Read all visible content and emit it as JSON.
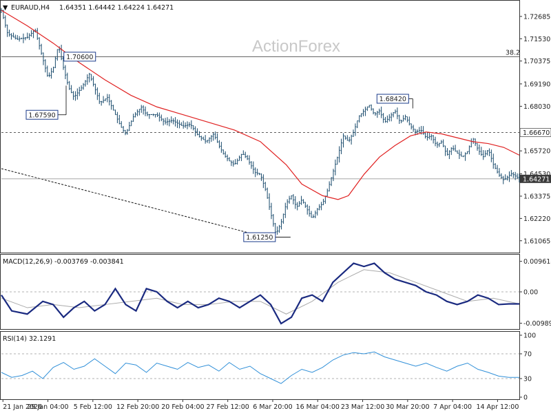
{
  "header": {
    "symbol": "EURAUD,H4",
    "ohlc": "1.64351 1.64442 1.64224 1.64271"
  },
  "watermark": "ActionForex",
  "chart_data": [
    {
      "type": "candlestick",
      "ylim": [
        1.6045,
        1.735
      ],
      "y_ticks": [
        "1.72685",
        "1.71530",
        "1.70375",
        "1.69190",
        "1.68030",
        "1.66670",
        "1.65720",
        "1.64530",
        "1.64271",
        "1.63375",
        "1.62220",
        "1.61065"
      ],
      "x_ticks": [
        "21 Jan 2026",
        "29 Jan 04:00",
        "5 Feb 12:00",
        "12 Feb 20:00",
        "20 Feb 04:00",
        "27 Feb 12:00",
        "6 Mar 20:00",
        "16 Mar 04:00",
        "23 Mar 12:00",
        "30 Mar 20:00",
        "7 Apr 04:00",
        "14 Apr 12:00"
      ],
      "last_price": "1.64271",
      "levels": [
        {
          "label": "1.70600",
          "value": 1.706
        },
        {
          "label": "1.67590",
          "value": 1.6759
        },
        {
          "label": "1.61250",
          "value": 1.6125
        },
        {
          "label": "1.68420",
          "value": 1.6842
        }
      ],
      "hlines": [
        {
          "value": 1.706,
          "label": "38.2",
          "style": "solid"
        },
        {
          "value": 1.6667,
          "label": "1.66670",
          "style": "dashed"
        }
      ],
      "trendline": {
        "from": [
          0,
          1.648
        ],
        "to": [
          0.51,
          1.6125
        ]
      },
      "price_path": [
        [
          0,
          1.73
        ],
        [
          0.012,
          1.718
        ],
        [
          0.03,
          1.715
        ],
        [
          0.05,
          1.716
        ],
        [
          0.065,
          1.72
        ],
        [
          0.08,
          1.705
        ],
        [
          0.09,
          1.695
        ],
        [
          0.1,
          1.7
        ],
        [
          0.11,
          1.712
        ],
        [
          0.12,
          1.7
        ],
        [
          0.13,
          1.69
        ],
        [
          0.14,
          1.685
        ],
        [
          0.155,
          1.69
        ],
        [
          0.17,
          1.697
        ],
        [
          0.18,
          1.69
        ],
        [
          0.19,
          1.682
        ],
        [
          0.205,
          1.685
        ],
        [
          0.22,
          1.676
        ],
        [
          0.23,
          1.67
        ],
        [
          0.24,
          1.666
        ],
        [
          0.255,
          1.675
        ],
        [
          0.27,
          1.68
        ],
        [
          0.28,
          1.676
        ],
        [
          0.3,
          1.676
        ],
        [
          0.315,
          1.672
        ],
        [
          0.33,
          1.673
        ],
        [
          0.35,
          1.67
        ],
        [
          0.365,
          1.671
        ],
        [
          0.38,
          1.665
        ],
        [
          0.395,
          1.662
        ],
        [
          0.41,
          1.666
        ],
        [
          0.42,
          1.66
        ],
        [
          0.43,
          1.655
        ],
        [
          0.44,
          1.652
        ],
        [
          0.45,
          1.65
        ],
        [
          0.465,
          1.656
        ],
        [
          0.475,
          1.653
        ],
        [
          0.49,
          1.646
        ],
        [
          0.5,
          1.645
        ],
        [
          0.51,
          1.637
        ],
        [
          0.52,
          1.625
        ],
        [
          0.53,
          1.614
        ],
        [
          0.54,
          1.62
        ],
        [
          0.55,
          1.63
        ],
        [
          0.56,
          1.634
        ],
        [
          0.57,
          1.628
        ],
        [
          0.58,
          1.632
        ],
        [
          0.59,
          1.627
        ],
        [
          0.6,
          1.622
        ],
        [
          0.61,
          1.627
        ],
        [
          0.62,
          1.63
        ],
        [
          0.63,
          1.637
        ],
        [
          0.64,
          1.646
        ],
        [
          0.65,
          1.655
        ],
        [
          0.66,
          1.665
        ],
        [
          0.67,
          1.662
        ],
        [
          0.68,
          1.667
        ],
        [
          0.69,
          1.675
        ],
        [
          0.7,
          1.678
        ],
        [
          0.71,
          1.681
        ],
        [
          0.72,
          1.676
        ],
        [
          0.73,
          1.678
        ],
        [
          0.74,
          1.672
        ],
        [
          0.75,
          1.675
        ],
        [
          0.76,
          1.678
        ],
        [
          0.77,
          1.672
        ],
        [
          0.78,
          1.675
        ],
        [
          0.79,
          1.67
        ],
        [
          0.8,
          1.667
        ],
        [
          0.81,
          1.668
        ],
        [
          0.82,
          1.664
        ],
        [
          0.83,
          1.665
        ],
        [
          0.84,
          1.66
        ],
        [
          0.85,
          1.662
        ],
        [
          0.86,
          1.655
        ],
        [
          0.87,
          1.659
        ],
        [
          0.88,
          1.656
        ],
        [
          0.89,
          1.654
        ],
        [
          0.9,
          1.657
        ],
        [
          0.91,
          1.664
        ],
        [
          0.92,
          1.658
        ],
        [
          0.93,
          1.654
        ],
        [
          0.94,
          1.658
        ],
        [
          0.95,
          1.65
        ],
        [
          0.96,
          1.645
        ],
        [
          0.97,
          1.642
        ],
        [
          0.985,
          1.6455
        ],
        [
          1.0,
          1.6427
        ]
      ],
      "ma_path": [
        [
          0,
          1.73
        ],
        [
          0.05,
          1.722
        ],
        [
          0.1,
          1.713
        ],
        [
          0.15,
          1.703
        ],
        [
          0.2,
          1.694
        ],
        [
          0.25,
          1.686
        ],
        [
          0.3,
          1.68
        ],
        [
          0.35,
          1.676
        ],
        [
          0.4,
          1.672
        ],
        [
          0.45,
          1.668
        ],
        [
          0.5,
          1.662
        ],
        [
          0.55,
          1.65
        ],
        [
          0.58,
          1.64
        ],
        [
          0.62,
          1.634
        ],
        [
          0.65,
          1.632
        ],
        [
          0.67,
          1.634
        ],
        [
          0.7,
          1.645
        ],
        [
          0.73,
          1.654
        ],
        [
          0.76,
          1.66
        ],
        [
          0.79,
          1.665
        ],
        [
          0.82,
          1.667
        ],
        [
          0.85,
          1.666
        ],
        [
          0.88,
          1.664
        ],
        [
          0.91,
          1.662
        ],
        [
          0.94,
          1.661
        ],
        [
          0.97,
          1.659
        ],
        [
          1.0,
          1.655
        ]
      ]
    },
    {
      "type": "line",
      "title": "MACD(12,26,9) -0.003769 -0.003841",
      "ylim": [
        -0.0115,
        0.0115
      ],
      "y_ticks": [
        "0.009618",
        "0.00",
        "-0.009892"
      ],
      "macd_path": [
        [
          0,
          -0.001
        ],
        [
          0.02,
          -0.006
        ],
        [
          0.05,
          -0.007
        ],
        [
          0.08,
          -0.003
        ],
        [
          0.1,
          -0.004
        ],
        [
          0.12,
          -0.008
        ],
        [
          0.14,
          -0.005
        ],
        [
          0.16,
          -0.003
        ],
        [
          0.18,
          -0.006
        ],
        [
          0.2,
          -0.004
        ],
        [
          0.22,
          0.001
        ],
        [
          0.24,
          -0.004
        ],
        [
          0.26,
          -0.006
        ],
        [
          0.28,
          0.001
        ],
        [
          0.3,
          0.0
        ],
        [
          0.32,
          -0.003
        ],
        [
          0.34,
          -0.005
        ],
        [
          0.36,
          -0.003
        ],
        [
          0.38,
          -0.005
        ],
        [
          0.4,
          -0.004
        ],
        [
          0.42,
          -0.002
        ],
        [
          0.44,
          -0.003
        ],
        [
          0.46,
          -0.005
        ],
        [
          0.48,
          -0.003
        ],
        [
          0.5,
          -0.001
        ],
        [
          0.52,
          -0.004
        ],
        [
          0.54,
          -0.01
        ],
        [
          0.56,
          -0.008
        ],
        [
          0.58,
          -0.002
        ],
        [
          0.6,
          -0.001
        ],
        [
          0.62,
          -0.003
        ],
        [
          0.64,
          0.003
        ],
        [
          0.66,
          0.006
        ],
        [
          0.68,
          0.009
        ],
        [
          0.7,
          0.008
        ],
        [
          0.72,
          0.009
        ],
        [
          0.74,
          0.006
        ],
        [
          0.76,
          0.004
        ],
        [
          0.78,
          0.003
        ],
        [
          0.8,
          0.002
        ],
        [
          0.82,
          0.0
        ],
        [
          0.84,
          -0.001
        ],
        [
          0.86,
          -0.003
        ],
        [
          0.88,
          -0.004
        ],
        [
          0.9,
          -0.003
        ],
        [
          0.92,
          -0.001
        ],
        [
          0.94,
          -0.002
        ],
        [
          0.96,
          -0.004
        ],
        [
          0.98,
          -0.0038
        ],
        [
          1.0,
          -0.0038
        ]
      ],
      "signal_path": [
        [
          0,
          -0.002
        ],
        [
          0.05,
          -0.005
        ],
        [
          0.1,
          -0.004
        ],
        [
          0.15,
          -0.005
        ],
        [
          0.2,
          -0.004
        ],
        [
          0.25,
          -0.003
        ],
        [
          0.3,
          -0.002
        ],
        [
          0.35,
          -0.004
        ],
        [
          0.4,
          -0.004
        ],
        [
          0.45,
          -0.003
        ],
        [
          0.5,
          -0.003
        ],
        [
          0.55,
          -0.007
        ],
        [
          0.6,
          -0.003
        ],
        [
          0.65,
          0.003
        ],
        [
          0.7,
          0.007
        ],
        [
          0.75,
          0.006
        ],
        [
          0.8,
          0.003
        ],
        [
          0.85,
          0.0
        ],
        [
          0.9,
          -0.003
        ],
        [
          0.95,
          -0.002
        ],
        [
          1.0,
          -0.0038
        ]
      ]
    },
    {
      "type": "line",
      "title": "RSI(14) 32.1291",
      "ylim": [
        0,
        100
      ],
      "y_ticks": [
        "100",
        "70",
        "30",
        "0"
      ],
      "levels": [
        70,
        30
      ],
      "rsi_path": [
        [
          0,
          40
        ],
        [
          0.02,
          32
        ],
        [
          0.04,
          35
        ],
        [
          0.06,
          42
        ],
        [
          0.08,
          30
        ],
        [
          0.1,
          48
        ],
        [
          0.12,
          56
        ],
        [
          0.14,
          45
        ],
        [
          0.16,
          50
        ],
        [
          0.18,
          62
        ],
        [
          0.2,
          50
        ],
        [
          0.22,
          38
        ],
        [
          0.24,
          55
        ],
        [
          0.26,
          52
        ],
        [
          0.28,
          40
        ],
        [
          0.3,
          55
        ],
        [
          0.32,
          50
        ],
        [
          0.34,
          45
        ],
        [
          0.36,
          56
        ],
        [
          0.38,
          48
        ],
        [
          0.4,
          52
        ],
        [
          0.42,
          42
        ],
        [
          0.44,
          56
        ],
        [
          0.46,
          45
        ],
        [
          0.48,
          50
        ],
        [
          0.5,
          38
        ],
        [
          0.52,
          30
        ],
        [
          0.54,
          22
        ],
        [
          0.56,
          35
        ],
        [
          0.58,
          45
        ],
        [
          0.6,
          40
        ],
        [
          0.62,
          48
        ],
        [
          0.64,
          60
        ],
        [
          0.66,
          68
        ],
        [
          0.68,
          72
        ],
        [
          0.7,
          70
        ],
        [
          0.72,
          73
        ],
        [
          0.74,
          65
        ],
        [
          0.76,
          60
        ],
        [
          0.78,
          55
        ],
        [
          0.8,
          50
        ],
        [
          0.82,
          55
        ],
        [
          0.84,
          48
        ],
        [
          0.86,
          42
        ],
        [
          0.88,
          50
        ],
        [
          0.9,
          55
        ],
        [
          0.92,
          45
        ],
        [
          0.94,
          40
        ],
        [
          0.96,
          34
        ],
        [
          0.98,
          32
        ],
        [
          1.0,
          32
        ]
      ]
    }
  ]
}
